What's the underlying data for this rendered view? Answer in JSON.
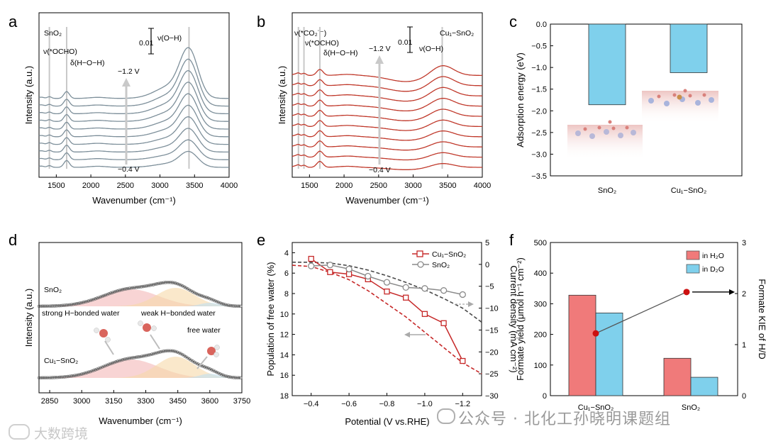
{
  "panel_letters": [
    "a",
    "b",
    "c",
    "d",
    "e",
    "f"
  ],
  "watermark": {
    "right": "公众号 · 北化工孙晓明课题组",
    "left": "大数跨境"
  },
  "colors": {
    "gray_curve": "#7d8f9a",
    "red_curve": "#c0392b",
    "bar_blue": "#7fd0ec",
    "bar_red": "#f07a7a",
    "e_red": "#c62828",
    "e_gray": "#8a8a8a",
    "dash_dark": "#4a4a4a"
  },
  "chart_data": [
    {
      "id": "a",
      "type": "line",
      "xlabel": "Wavenumber (cm⁻¹)",
      "ylabel": "Intensity (a.u.)",
      "xlim": [
        1250,
        4000
      ],
      "xticks": [
        1500,
        2000,
        2500,
        3000,
        3500,
        4000
      ],
      "n_curves": 10,
      "sample_label": "SnO₂",
      "annotations": [
        "ν(*OCHO)",
        "δ(H−O−H)",
        "ν(O−H)",
        "−1.2 V",
        "−0.4 V",
        "0.01"
      ],
      "guide_lines_x": [
        1400,
        1650,
        3420
      ]
    },
    {
      "id": "b",
      "type": "line",
      "xlabel": "Wavenumber (cm⁻¹)",
      "ylabel": "Intensity (a.u.)",
      "xlim": [
        1250,
        4000
      ],
      "xticks": [
        1500,
        2000,
        2500,
        3000,
        3500,
        4000
      ],
      "n_curves": 10,
      "sample_label": "Cu₁−SnO₂",
      "annotations": [
        "ν(*CO₂˙⁻)",
        "ν(*OCHO)",
        "δ(H−O−H)",
        "ν(O−H)",
        "−1.2 V",
        "−0.4 V",
        "0.01"
      ],
      "guide_lines_x": [
        1340,
        1420,
        1650,
        3420
      ]
    },
    {
      "id": "c",
      "type": "bar",
      "ylabel": "Adsorption energy (eV)",
      "categories": [
        "SnO₂",
        "Cu₁−SnO₂"
      ],
      "values": [
        -1.86,
        -1.12
      ],
      "ylim": [
        -3.5,
        0.0
      ],
      "yticks": [
        0.0,
        -0.5,
        -1.0,
        -1.5,
        -2.0,
        -2.5,
        -3.0,
        -3.5
      ]
    },
    {
      "id": "d",
      "type": "line",
      "xlabel": "Wavenumber (cm⁻¹)",
      "ylabel": "Intensity (a.u.)",
      "xlim": [
        2800,
        3750
      ],
      "xticks": [
        2850,
        3000,
        3150,
        3300,
        3450,
        3600,
        3750
      ],
      "labels": [
        "SnO₂",
        "Cu₁−SnO₂",
        "strong H−bonded water",
        "weak H−bonded water",
        "free water"
      ],
      "components_center": [
        3230,
        3440,
        3600
      ]
    },
    {
      "id": "e",
      "type": "line",
      "xlabel": "Potential (V vs.RHE)",
      "ylabel": "Population of free water (%)",
      "y2label": "Current density (mA cm⁻²)",
      "x": [
        -0.4,
        -0.5,
        -0.6,
        -0.7,
        -0.8,
        -0.9,
        -1.0,
        -1.1,
        -1.2
      ],
      "xlim": [
        -0.3,
        -1.3
      ],
      "xticks": [
        -0.4,
        -0.6,
        -0.8,
        -1.0,
        -1.2
      ],
      "ylim": [
        18,
        3
      ],
      "yticks": [
        4,
        6,
        8,
        10,
        12,
        14,
        16,
        18
      ],
      "y2lim": [
        -30,
        5
      ],
      "y2ticks": [
        5,
        0,
        -5,
        -10,
        -15,
        -20,
        -25,
        -30
      ],
      "series": [
        {
          "name": "Cu₁−SnO₂",
          "values": [
            4.6,
            5.9,
            6.1,
            6.6,
            7.8,
            8.4,
            10.0,
            10.9,
            14.6
          ]
        },
        {
          "name": "SnO₂",
          "values": [
            5.3,
            5.2,
            5.6,
            6.3,
            6.9,
            7.4,
            7.5,
            7.7,
            8.1
          ]
        }
      ],
      "current_density": [
        {
          "name": "Cu₁−SnO₂",
          "x": [
            -0.3,
            -0.4,
            -0.5,
            -0.6,
            -0.7,
            -0.8,
            -0.9,
            -1.0,
            -1.1,
            -1.2,
            -1.3
          ],
          "values": [
            -0.2,
            -0.5,
            -1.8,
            -3.5,
            -6.0,
            -9.0,
            -12.0,
            -15.5,
            -19.0,
            -22.5,
            -25.0
          ]
        },
        {
          "name": "SnO₂",
          "x": [
            -0.3,
            -0.4,
            -0.5,
            -0.6,
            -0.7,
            -0.8,
            -0.9,
            -1.0,
            -1.1,
            -1.2,
            -1.3
          ],
          "values": [
            0.5,
            0.5,
            0.3,
            -0.3,
            -1.3,
            -2.6,
            -4.1,
            -5.8,
            -7.8,
            -10.0,
            -13.2
          ]
        }
      ]
    },
    {
      "id": "f",
      "type": "bar",
      "ylabel": "Formate yield (μmol h⁻¹ cm⁻²)",
      "y2label": "Formate KIE of H/D",
      "categories": [
        "Cu₁−SnO₂",
        "SnO₂"
      ],
      "series": [
        {
          "name": "in H₂O",
          "values": [
            328,
            122
          ]
        },
        {
          "name": "in D₂O",
          "values": [
            270,
            60
          ]
        }
      ],
      "ylim": [
        0,
        500
      ],
      "yticks": [
        0,
        100,
        200,
        300,
        400,
        500
      ],
      "y2lim": [
        0,
        3
      ],
      "y2ticks": [
        0,
        1,
        2,
        3
      ],
      "kie": [
        1.22,
        2.03
      ]
    }
  ]
}
